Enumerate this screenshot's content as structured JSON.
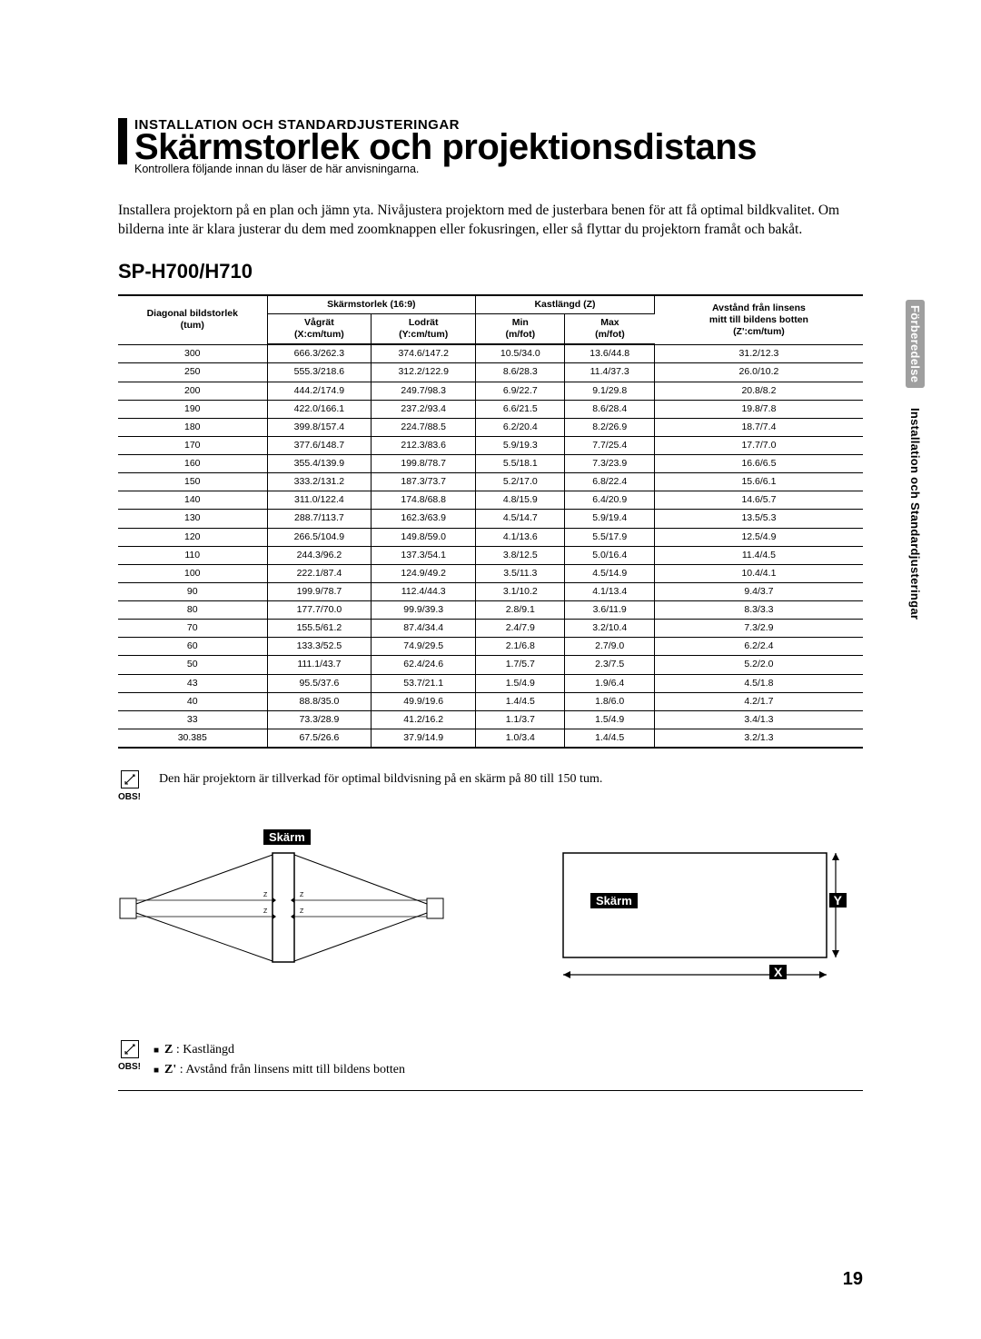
{
  "header": {
    "section": "INSTALLATION OCH STANDARDJUSTERINGAR",
    "title": "Skärmstorlek och projektionsdistans",
    "subtitle": "Kontrollera följande innan du läser de här anvisningarna."
  },
  "intro": "Installera projektorn på en plan och jämn yta. Nivåjustera projektorn med de justerbara benen för att få optimal bildkvalitet. Om bilderna inte är klara justerar du dem med zoomknappen eller fokusringen, eller så flyttar du projektorn framåt och bakåt.",
  "model": "SP-H700/H710",
  "table": {
    "headers": {
      "diag_l1": "Diagonal bildstorlek",
      "diag_l2": "(tum)",
      "size_group": "Skärmstorlek (16:9)",
      "throw_group": "Kastlängd (Z)",
      "offset_l1": "Avstånd från linsens",
      "offset_l2": "mitt till bildens botten",
      "offset_l3": "(Z':cm/tum)",
      "w_l1": "Vågrät",
      "w_l2": "(X:cm/tum)",
      "h_l1": "Lodrät",
      "h_l2": "(Y:cm/tum)",
      "min_l1": "Min",
      "min_l2": "(m/fot)",
      "max_l1": "Max",
      "max_l2": "(m/fot)"
    },
    "rows": [
      [
        "300",
        "666.3/262.3",
        "374.6/147.2",
        "10.5/34.0",
        "13.6/44.8",
        "31.2/12.3"
      ],
      [
        "250",
        "555.3/218.6",
        "312.2/122.9",
        "8.6/28.3",
        "11.4/37.3",
        "26.0/10.2"
      ],
      [
        "200",
        "444.2/174.9",
        "249.7/98.3",
        "6.9/22.7",
        "9.1/29.8",
        "20.8/8.2"
      ],
      [
        "190",
        "422.0/166.1",
        "237.2/93.4",
        "6.6/21.5",
        "8.6/28.4",
        "19.8/7.8"
      ],
      [
        "180",
        "399.8/157.4",
        "224.7/88.5",
        "6.2/20.4",
        "8.2/26.9",
        "18.7/7.4"
      ],
      [
        "170",
        "377.6/148.7",
        "212.3/83.6",
        "5.9/19.3",
        "7.7/25.4",
        "17.7/7.0"
      ],
      [
        "160",
        "355.4/139.9",
        "199.8/78.7",
        "5.5/18.1",
        "7.3/23.9",
        "16.6/6.5"
      ],
      [
        "150",
        "333.2/131.2",
        "187.3/73.7",
        "5.2/17.0",
        "6.8/22.4",
        "15.6/6.1"
      ],
      [
        "140",
        "311.0/122.4",
        "174.8/68.8",
        "4.8/15.9",
        "6.4/20.9",
        "14.6/5.7"
      ],
      [
        "130",
        "288.7/113.7",
        "162.3/63.9",
        "4.5/14.7",
        "5.9/19.4",
        "13.5/5.3"
      ],
      [
        "120",
        "266.5/104.9",
        "149.8/59.0",
        "4.1/13.6",
        "5.5/17.9",
        "12.5/4.9"
      ],
      [
        "110",
        "244.3/96.2",
        "137.3/54.1",
        "3.8/12.5",
        "5.0/16.4",
        "11.4/4.5"
      ],
      [
        "100",
        "222.1/87.4",
        "124.9/49.2",
        "3.5/11.3",
        "4.5/14.9",
        "10.4/4.1"
      ],
      [
        "90",
        "199.9/78.7",
        "112.4/44.3",
        "3.1/10.2",
        "4.1/13.4",
        "9.4/3.7"
      ],
      [
        "80",
        "177.7/70.0",
        "99.9/39.3",
        "2.8/9.1",
        "3.6/11.9",
        "8.3/3.3"
      ],
      [
        "70",
        "155.5/61.2",
        "87.4/34.4",
        "2.4/7.9",
        "3.2/10.4",
        "7.3/2.9"
      ],
      [
        "60",
        "133.3/52.5",
        "74.9/29.5",
        "2.1/6.8",
        "2.7/9.0",
        "6.2/2.4"
      ],
      [
        "50",
        "111.1/43.7",
        "62.4/24.6",
        "1.7/5.7",
        "2.3/7.5",
        "5.2/2.0"
      ],
      [
        "43",
        "95.5/37.6",
        "53.7/21.1",
        "1.5/4.9",
        "1.9/6.4",
        "4.5/1.8"
      ],
      [
        "40",
        "88.8/35.0",
        "49.9/19.6",
        "1.4/4.5",
        "1.8/6.0",
        "4.2/1.7"
      ],
      [
        "33",
        "73.3/28.9",
        "41.2/16.2",
        "1.1/3.7",
        "1.5/4.9",
        "3.4/1.3"
      ],
      [
        "30.385",
        "67.5/26.6",
        "37.9/14.9",
        "1.0/3.4",
        "1.4/4.5",
        "3.2/1.3"
      ]
    ],
    "col_widths_pct": [
      20,
      14,
      14,
      12,
      12,
      28
    ]
  },
  "note1": {
    "obs": "OBS!",
    "text": "Den här projektorn är tillverkad för optimal bildvisning på en skärm på 80 till 150 tum."
  },
  "diagrams": {
    "left_label": "Skärm",
    "right_label": "Skärm",
    "x": "X",
    "y": "Y",
    "z": "Z",
    "zprime": "Z'"
  },
  "legend": {
    "obs": "OBS!",
    "items": [
      {
        "key": "Z",
        "text": ": Kastlängd"
      },
      {
        "key": "Z'",
        "text": ": Avstånd från linsens mitt till bildens botten"
      }
    ]
  },
  "sidetabs": {
    "one": "Förberedelse",
    "two": "Installation och Standardjusteringar"
  },
  "page_number": "19",
  "colors": {
    "text": "#000000",
    "bg": "#ffffff",
    "tab_bg": "#9f9f9f"
  }
}
